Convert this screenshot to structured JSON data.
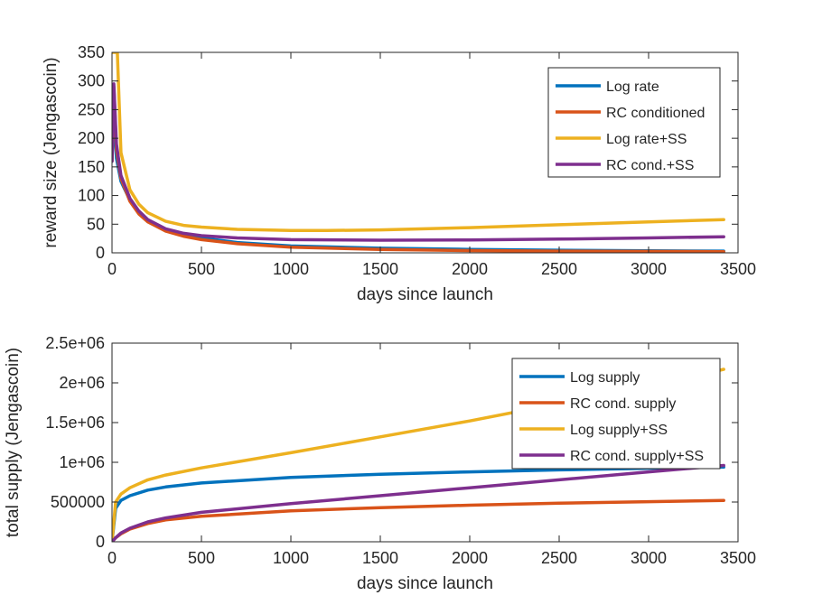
{
  "chart_data": [
    {
      "type": "line",
      "title": "",
      "xlabel": "days since launch",
      "ylabel": "reward size (Jengascoin)",
      "xlim": [
        0,
        3500
      ],
      "ylim": [
        0,
        350
      ],
      "xticks": [
        0,
        500,
        1000,
        1500,
        2000,
        2500,
        3000,
        3500
      ],
      "yticks": [
        0,
        50,
        100,
        150,
        200,
        250,
        300,
        350
      ],
      "xtick_labels": [
        "0",
        "500",
        "1000",
        "1500",
        "2000",
        "2500",
        "3000",
        "3500"
      ],
      "ytick_labels": [
        "0",
        "50",
        "100",
        "150",
        "200",
        "250",
        "300",
        "350"
      ],
      "legend_position": "top-right",
      "grid": false,
      "series": [
        {
          "name": "Log rate",
          "color": "#0072BD",
          "x": [
            0,
            10,
            25,
            50,
            100,
            150,
            200,
            300,
            400,
            500,
            700,
            1000,
            1500,
            2000,
            2500,
            3000,
            3420
          ],
          "y": [
            160,
            245,
            165,
            125,
            92,
            70,
            55,
            40,
            32,
            26,
            18,
            12,
            8,
            6,
            4.5,
            3.5,
            3
          ]
        },
        {
          "name": "RC conditioned",
          "color": "#D95319",
          "x": [
            0,
            10,
            25,
            50,
            100,
            150,
            200,
            300,
            400,
            500,
            700,
            1000,
            1500,
            2000,
            2500,
            3000,
            3420
          ],
          "y": [
            160,
            290,
            180,
            130,
            90,
            68,
            54,
            38,
            29,
            23,
            16,
            10,
            6,
            4,
            3,
            2.5,
            2
          ]
        },
        {
          "name": "Log rate+SS",
          "color": "#EDB120",
          "x": [
            0,
            15,
            30,
            50,
            100,
            150,
            200,
            300,
            400,
            500,
            700,
            1000,
            1200,
            1500,
            2000,
            2500,
            3000,
            3420
          ],
          "y": [
            350,
            350,
            350,
            175,
            110,
            85,
            70,
            55,
            48,
            45,
            41,
            39,
            39,
            40,
            44,
            49,
            54,
            58
          ]
        },
        {
          "name": "RC cond.+SS",
          "color": "#7E2F8E",
          "x": [
            0,
            10,
            25,
            50,
            100,
            150,
            200,
            300,
            400,
            500,
            700,
            1000,
            1500,
            2000,
            2500,
            3000,
            3420
          ],
          "y": [
            160,
            295,
            190,
            135,
            95,
            73,
            58,
            42,
            34,
            30,
            26,
            23,
            22,
            22.5,
            24,
            26,
            28
          ]
        }
      ]
    },
    {
      "type": "line",
      "title": "",
      "xlabel": "days since launch",
      "ylabel": "total supply (Jengascoin)",
      "xlim": [
        0,
        3500
      ],
      "ylim": [
        0,
        2500000
      ],
      "xticks": [
        0,
        500,
        1000,
        1500,
        2000,
        2500,
        3000,
        3500
      ],
      "yticks": [
        0,
        500000,
        1000000,
        1500000,
        2000000,
        2500000
      ],
      "xtick_labels": [
        "0",
        "500",
        "1000",
        "1500",
        "2000",
        "2500",
        "3000",
        "3500"
      ],
      "ytick_labels": [
        "0",
        "500000",
        "1e+06",
        "1.5e+06",
        "2e+06",
        "2.5e+06"
      ],
      "legend_position": "top-right",
      "grid": false,
      "series": [
        {
          "name": "Log supply",
          "color": "#0072BD",
          "x": [
            0,
            20,
            50,
            100,
            200,
            300,
            500,
            1000,
            1500,
            2000,
            2500,
            3000,
            3420
          ],
          "y": [
            0,
            420000,
            520000,
            580000,
            650000,
            690000,
            740000,
            810000,
            850000,
            880000,
            905000,
            925000,
            940000
          ]
        },
        {
          "name": "RC cond. supply",
          "color": "#D95319",
          "x": [
            0,
            20,
            50,
            100,
            200,
            300,
            500,
            1000,
            1500,
            2000,
            2500,
            3000,
            3420
          ],
          "y": [
            0,
            50000,
            100000,
            160000,
            230000,
            275000,
            320000,
            390000,
            430000,
            460000,
            485000,
            505000,
            520000
          ]
        },
        {
          "name": "Log supply+SS",
          "color": "#EDB120",
          "x": [
            0,
            20,
            50,
            100,
            200,
            300,
            500,
            1000,
            1500,
            2000,
            2500,
            3000,
            3420
          ],
          "y": [
            0,
            500000,
            600000,
            680000,
            780000,
            840000,
            930000,
            1120000,
            1320000,
            1520000,
            1740000,
            1950000,
            2170000
          ]
        },
        {
          "name": "RC cond. supply+SS",
          "color": "#7E2F8E",
          "x": [
            0,
            20,
            50,
            100,
            200,
            300,
            500,
            1000,
            1500,
            2000,
            2500,
            3000,
            3420
          ],
          "y": [
            0,
            50000,
            110000,
            170000,
            250000,
            300000,
            370000,
            480000,
            580000,
            680000,
            780000,
            880000,
            960000
          ]
        }
      ]
    }
  ]
}
